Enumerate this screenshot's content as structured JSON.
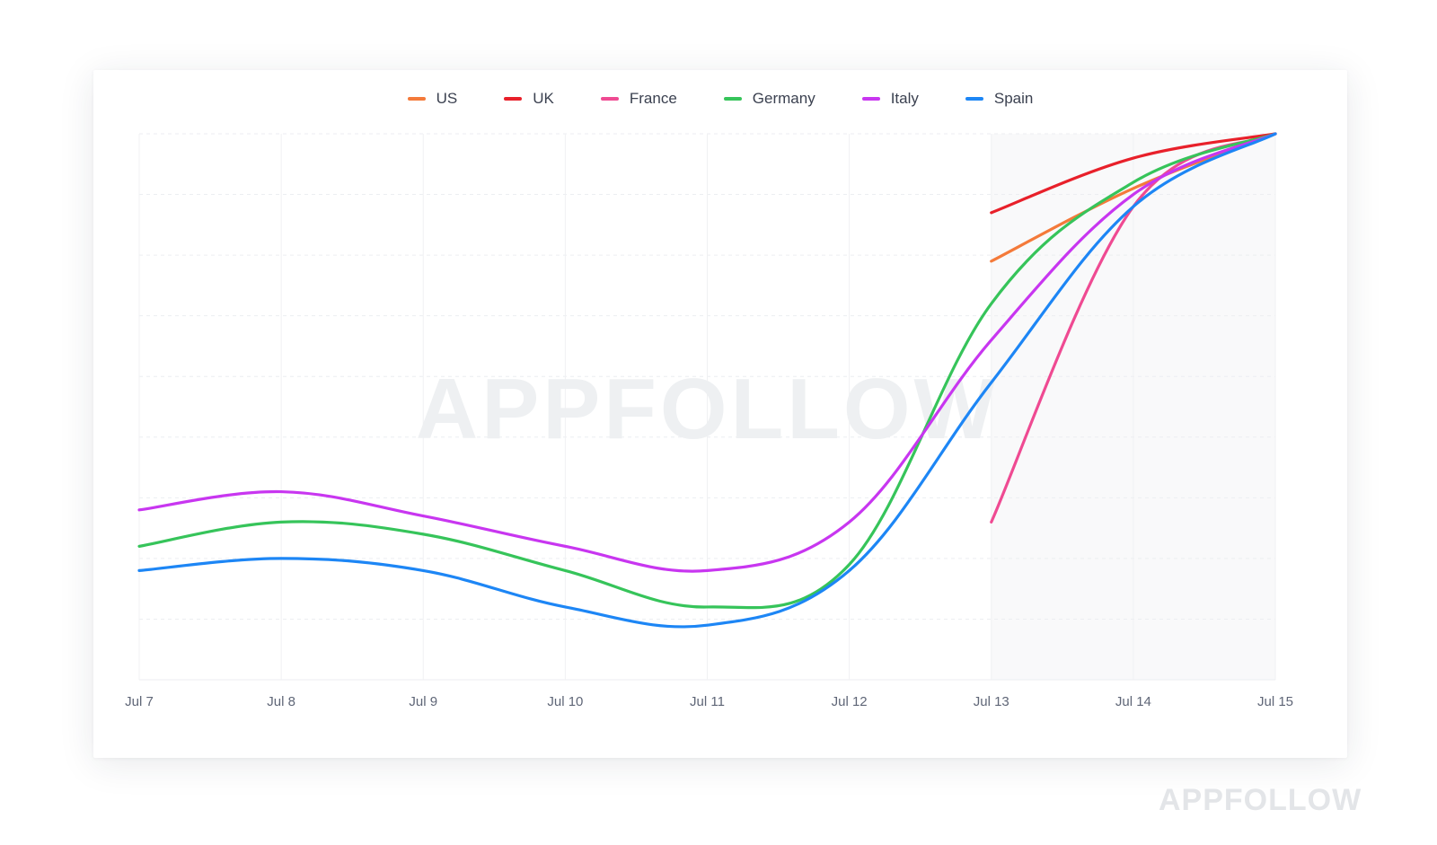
{
  "watermark": "APPFOLLOW",
  "brand_mark": "APPFOLLOW",
  "chart_data": {
    "type": "line",
    "title": "",
    "xlabel": "",
    "ylabel": "",
    "x": [
      "Jul 7",
      "Jul 8",
      "Jul 9",
      "Jul 10",
      "Jul 11",
      "Jul 12",
      "Jul 13",
      "Jul 14",
      "Jul 15"
    ],
    "ylim": [
      0,
      9
    ],
    "grid": true,
    "legend_position": "top-center",
    "series": [
      {
        "name": "US",
        "color": "#f47a3a",
        "values": [
          null,
          null,
          null,
          null,
          null,
          null,
          6.9,
          8.1,
          9.0
        ]
      },
      {
        "name": "UK",
        "color": "#e8202a",
        "values": [
          null,
          null,
          null,
          null,
          null,
          null,
          7.7,
          8.6,
          9.0
        ]
      },
      {
        "name": "France",
        "color": "#ef4a92",
        "values": [
          null,
          null,
          null,
          null,
          null,
          null,
          2.6,
          7.8,
          9.0
        ]
      },
      {
        "name": "Germany",
        "color": "#36c45a",
        "values": [
          2.2,
          2.6,
          2.4,
          1.8,
          1.2,
          1.9,
          6.2,
          8.2,
          9.0
        ]
      },
      {
        "name": "Italy",
        "color": "#c836f0",
        "values": [
          2.8,
          3.1,
          2.7,
          2.2,
          1.8,
          2.6,
          5.6,
          8.0,
          9.0
        ]
      },
      {
        "name": "Spain",
        "color": "#1d86f5",
        "values": [
          1.8,
          2.0,
          1.8,
          1.2,
          0.9,
          1.8,
          4.9,
          7.8,
          9.0
        ]
      }
    ]
  }
}
